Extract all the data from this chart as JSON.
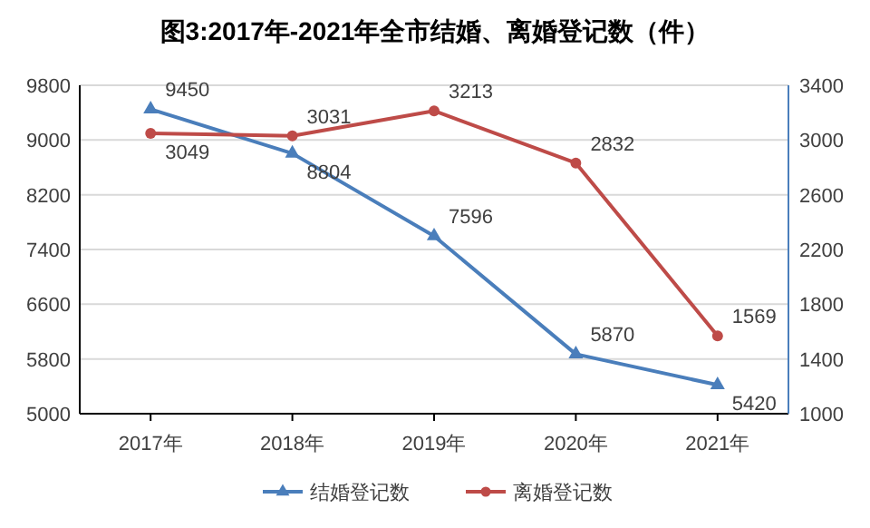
{
  "chart_data": {
    "type": "line",
    "title": "图3:2017年-2021年全市结婚、离婚登记数（件）",
    "categories": [
      "2017年",
      "2018年",
      "2019年",
      "2020年",
      "2021年"
    ],
    "series": [
      {
        "name": "结婚登记数",
        "color": "#4a7ebb",
        "values": [
          9450,
          8804,
          7596,
          5870,
          5420
        ],
        "marker": "triangle"
      },
      {
        "name": "离婚登记数",
        "color": "#be4b48",
        "values": [
          3049,
          3031,
          3213,
          2832,
          1569
        ],
        "axis": "y2",
        "marker": "circle"
      }
    ],
    "ylim": [
      5000,
      9800
    ],
    "yticks": [
      5000,
      5800,
      6600,
      7400,
      8200,
      9000,
      9800
    ],
    "y2lim": [
      1000,
      3400
    ],
    "y2ticks": [
      1000,
      1400,
      1800,
      2200,
      2600,
      3000,
      3400
    ],
    "grid": "y",
    "legend": "bottom",
    "data_labels": true
  }
}
